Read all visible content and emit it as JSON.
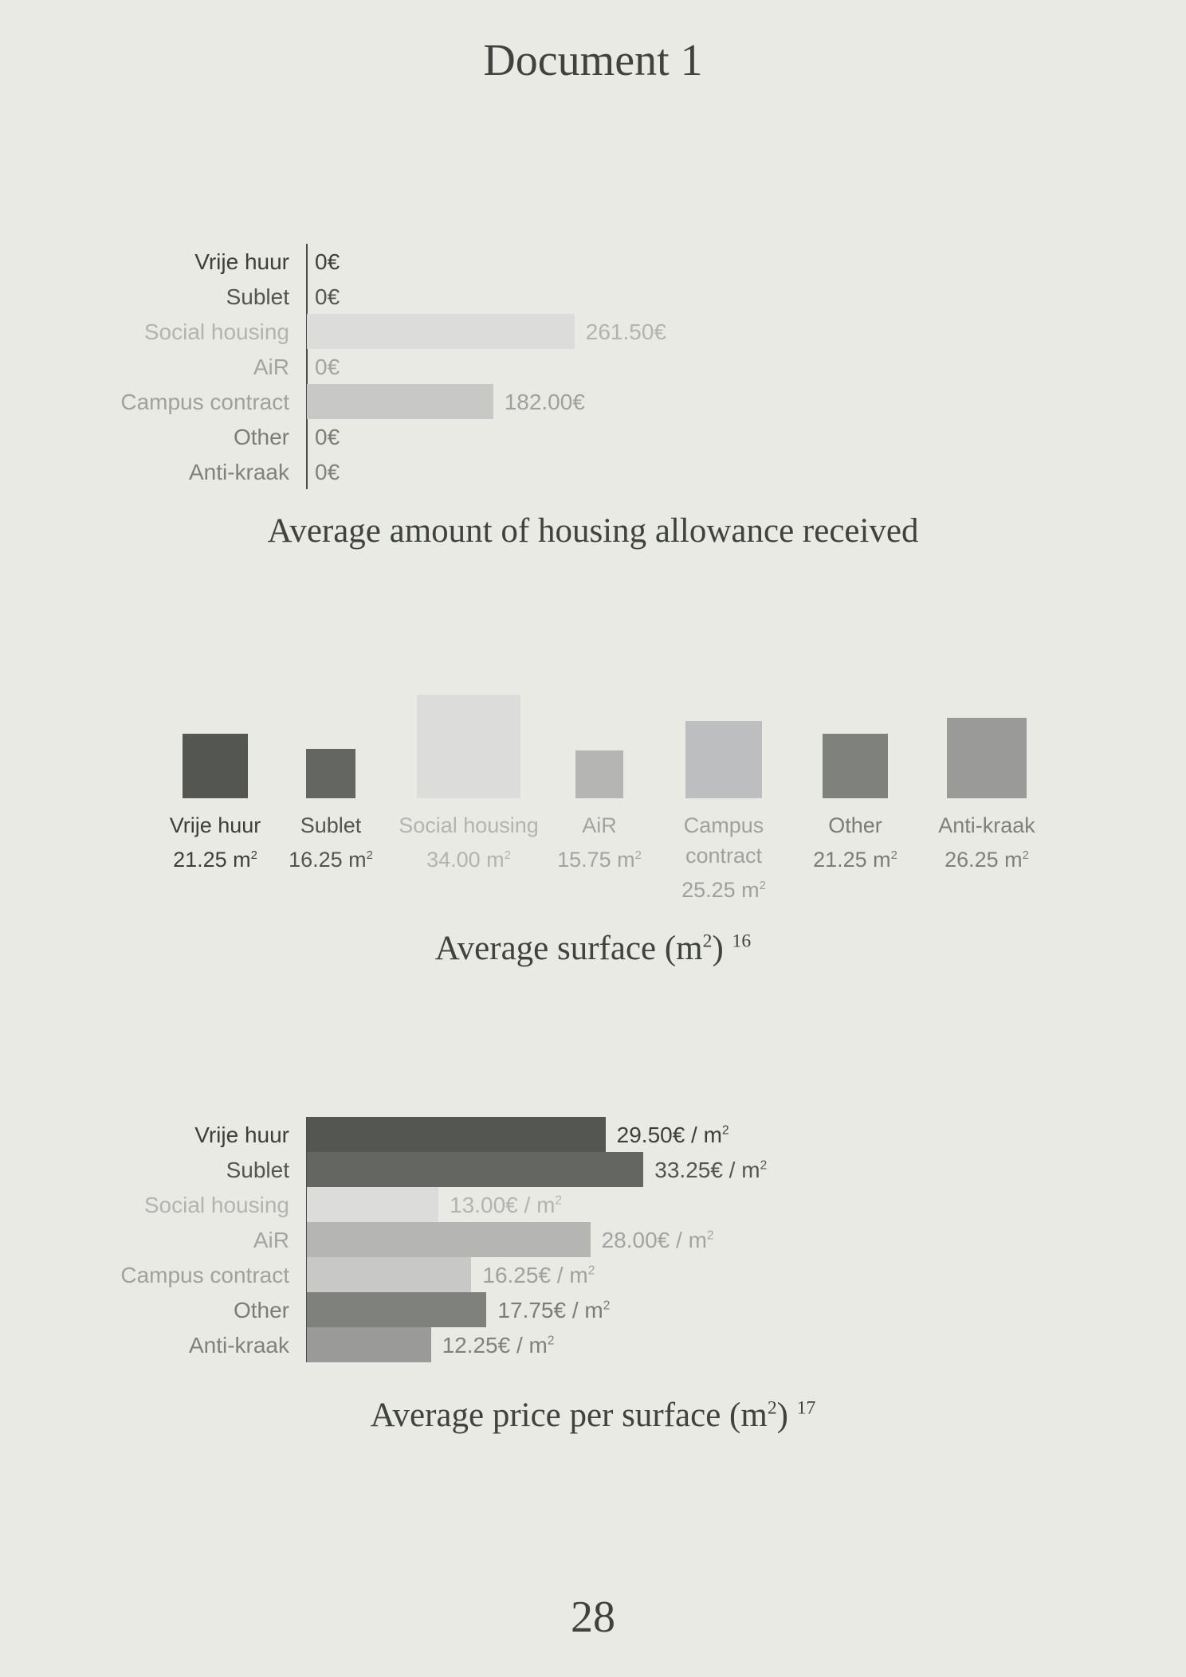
{
  "document_title": "Document 1",
  "page_number": "28",
  "categories": [
    "Vrije huur",
    "Sublet",
    "Social housing",
    "AiR",
    "Campus contract",
    "Other",
    "Anti-kraak"
  ],
  "colors": {
    "bars": [
      "#545751",
      "#646662",
      "#dcdcdb",
      "#b5b6b3",
      "#c8c8c6",
      "#7f817d",
      "#9a9b98"
    ],
    "surface_bars": [
      "#545751",
      "#646662",
      "#dcdcdb",
      "#b5b6b3",
      "#bdbebf",
      "#7f817d",
      "#9a9b98"
    ],
    "text": [
      "#3c3f3b",
      "#535551",
      "#b3b4b1",
      "#a3a4a1",
      "#a0a19e",
      "#7a7c78",
      "#7f817d"
    ]
  },
  "chart_data": [
    {
      "type": "bar",
      "orientation": "horizontal",
      "title": "Average amount of housing allowance received",
      "categories": [
        "Vrije huur",
        "Sublet",
        "Social housing",
        "AiR",
        "Campus contract",
        "Other",
        "Anti-kraak"
      ],
      "values": [
        0,
        0,
        261.5,
        0,
        182,
        0,
        0
      ],
      "value_labels": [
        "0€",
        "0€",
        "261.50€",
        "0€",
        "182.00€",
        "0€",
        "0€"
      ],
      "unit": "€"
    },
    {
      "type": "bar",
      "orientation": "squares",
      "title": "Average surface (m2)",
      "title_main": "Average surface (m",
      "title_sup": "2",
      "title_end": ")",
      "footnote": "16",
      "categories": [
        "Vrije huur",
        "Sublet",
        "Social housing",
        "AiR",
        "Campus contract",
        "Other",
        "Anti-kraak"
      ],
      "label_lines": [
        [
          "Vrije huur"
        ],
        [
          "Sublet"
        ],
        [
          "Social housing"
        ],
        [
          "AiR"
        ],
        [
          "Campus",
          "contract"
        ],
        [
          "Other"
        ],
        [
          "Anti-kraak"
        ]
      ],
      "values": [
        21.25,
        16.25,
        34.0,
        15.75,
        25.25,
        21.25,
        26.25
      ],
      "value_labels": [
        "21.25 m",
        "16.25 m",
        "34.00 m",
        "15.75 m",
        "25.25 m",
        "21.25 m",
        "26.25 m"
      ],
      "unit_sup": "2"
    },
    {
      "type": "bar",
      "orientation": "horizontal",
      "title": "Average price per surface (m2)",
      "title_main": "Average price per surface (m",
      "title_sup": "2",
      "title_end": ")",
      "footnote": "17",
      "categories": [
        "Vrije huur",
        "Sublet",
        "Social housing",
        "AiR",
        "Campus contract",
        "Other",
        "Anti-kraak"
      ],
      "values": [
        29.5,
        33.25,
        13.0,
        28.0,
        16.25,
        17.75,
        12.25
      ],
      "value_labels": [
        "29.50€ / m",
        "33.25€ / m",
        "13.00€ / m",
        "28.00€ / m",
        "16.25€ / m",
        "17.75€ / m",
        "12.25€ / m"
      ],
      "unit_sup": "2"
    }
  ]
}
